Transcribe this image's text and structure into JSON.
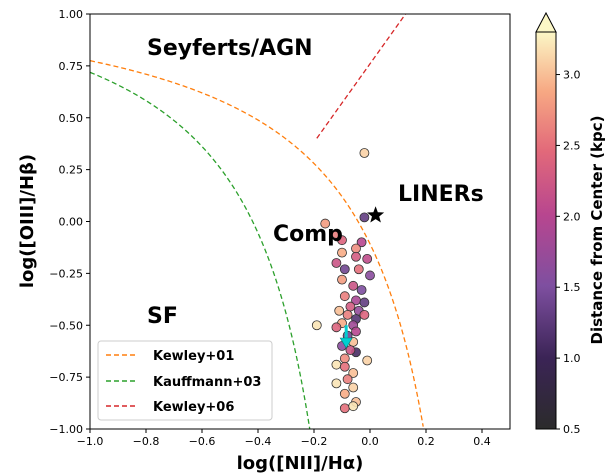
{
  "chart_data": {
    "type": "scatter",
    "title": "",
    "xlabel": "log([NII]/Hα)",
    "ylabel": "log([OIII]/Hβ)",
    "xlim": [
      -1.0,
      0.5
    ],
    "ylim": [
      -1.0,
      1.0
    ],
    "x_ticks": [
      "−1.0",
      "−0.8",
      "−0.6",
      "−0.4",
      "−0.2",
      "0.0",
      "0.2",
      "0.4"
    ],
    "y_ticks": [
      "−1.00",
      "−0.75",
      "−0.50",
      "−0.25",
      "0.00",
      "0.25",
      "0.50",
      "0.75",
      "1.00"
    ],
    "region_labels": [
      "Seyferts/AGN",
      "LINERs",
      "Comp",
      "SF"
    ],
    "legend": {
      "placement": "lower-left",
      "entries": [
        {
          "label": "Kewley+01",
          "color": "#ff7f0e"
        },
        {
          "label": "Kauffmann+03",
          "color": "#2ca02c"
        },
        {
          "label": "Kewley+06",
          "color": "#d62728"
        }
      ]
    },
    "colorbar": {
      "label": "Distance from Center (kpc)",
      "range": [
        0.5,
        3.3
      ],
      "ticks": [
        "0.5",
        "1.0",
        "1.5",
        "2.0",
        "2.5",
        "3.0"
      ],
      "colormap": "magma"
    },
    "star_marker": {
      "x": 0.02,
      "y": 0.03
    },
    "arrow_marker": {
      "x": -0.085,
      "y_start": -0.5,
      "y_end": -0.6,
      "color": "#00ced1"
    },
    "points": [
      {
        "x": -0.02,
        "y": 0.33,
        "d": 3.1
      },
      {
        "x": -0.16,
        "y": -0.01,
        "d": 2.8
      },
      {
        "x": -0.02,
        "y": 0.02,
        "d": 1.3
      },
      {
        "x": -0.12,
        "y": -0.06,
        "d": 2.6
      },
      {
        "x": -0.1,
        "y": -0.09,
        "d": 2.4
      },
      {
        "x": -0.03,
        "y": -0.1,
        "d": 2.0
      },
      {
        "x": -0.05,
        "y": -0.13,
        "d": 2.7
      },
      {
        "x": -0.1,
        "y": -0.15,
        "d": 2.9
      },
      {
        "x": -0.05,
        "y": -0.17,
        "d": 2.3
      },
      {
        "x": -0.01,
        "y": -0.18,
        "d": 2.1
      },
      {
        "x": -0.12,
        "y": -0.2,
        "d": 2.2
      },
      {
        "x": -0.09,
        "y": -0.23,
        "d": 1.4
      },
      {
        "x": -0.04,
        "y": -0.23,
        "d": 2.5
      },
      {
        "x": 0.0,
        "y": -0.26,
        "d": 1.6
      },
      {
        "x": -0.1,
        "y": -0.28,
        "d": 2.8
      },
      {
        "x": -0.06,
        "y": -0.31,
        "d": 2.2
      },
      {
        "x": -0.03,
        "y": -0.33,
        "d": 1.5
      },
      {
        "x": -0.09,
        "y": -0.36,
        "d": 2.6
      },
      {
        "x": -0.05,
        "y": -0.38,
        "d": 1.9
      },
      {
        "x": -0.02,
        "y": -0.39,
        "d": 1.3
      },
      {
        "x": -0.07,
        "y": -0.41,
        "d": 2.3
      },
      {
        "x": -0.11,
        "y": -0.43,
        "d": 3.0
      },
      {
        "x": -0.04,
        "y": -0.43,
        "d": 1.7
      },
      {
        "x": -0.08,
        "y": -0.45,
        "d": 2.6
      },
      {
        "x": -0.05,
        "y": -0.47,
        "d": 1.2
      },
      {
        "x": -0.1,
        "y": -0.49,
        "d": 2.9
      },
      {
        "x": -0.06,
        "y": -0.5,
        "d": 1.8
      },
      {
        "x": -0.12,
        "y": -0.51,
        "d": 2.4
      },
      {
        "x": -0.05,
        "y": -0.53,
        "d": 2.0
      },
      {
        "x": -0.08,
        "y": -0.55,
        "d": 1.4
      },
      {
        "x": -0.06,
        "y": -0.58,
        "d": 3.0
      },
      {
        "x": -0.1,
        "y": -0.6,
        "d": 1.6
      },
      {
        "x": -0.05,
        "y": -0.63,
        "d": 1.1
      },
      {
        "x": -0.07,
        "y": -0.62,
        "d": 2.2
      },
      {
        "x": -0.09,
        "y": -0.66,
        "d": 2.7
      },
      {
        "x": -0.01,
        "y": -0.67,
        "d": 3.1
      },
      {
        "x": -0.12,
        "y": -0.69,
        "d": 3.2
      },
      {
        "x": -0.09,
        "y": -0.7,
        "d": 2.5
      },
      {
        "x": -0.06,
        "y": -0.73,
        "d": 3.0
      },
      {
        "x": -0.08,
        "y": -0.76,
        "d": 2.6
      },
      {
        "x": -0.12,
        "y": -0.78,
        "d": 3.2
      },
      {
        "x": -0.06,
        "y": -0.8,
        "d": 3.1
      },
      {
        "x": -0.09,
        "y": -0.83,
        "d": 2.9
      },
      {
        "x": -0.05,
        "y": -0.87,
        "d": 3.0
      },
      {
        "x": -0.09,
        "y": -0.9,
        "d": 2.5
      },
      {
        "x": -0.06,
        "y": -0.89,
        "d": 3.2
      },
      {
        "x": -0.19,
        "y": -0.5,
        "d": 3.2
      },
      {
        "x": -0.02,
        "y": -0.45,
        "d": 2.4
      }
    ]
  }
}
